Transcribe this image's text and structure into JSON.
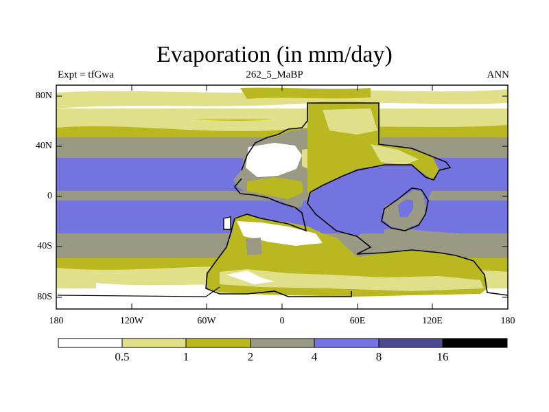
{
  "title": "Evaporation (in mm/day)",
  "subtitle_left": "Expt = tfGwa",
  "subtitle_center": "262_5_MaBP",
  "subtitle_right": "ANN",
  "y_ticks": [
    "80N",
    "40N",
    "0",
    "40S",
    "80S"
  ],
  "x_ticks": [
    "180",
    "120W",
    "60W",
    "0",
    "60E",
    "120E",
    "180"
  ],
  "colorbar": {
    "labels": [
      "0.5",
      "1",
      "2",
      "4",
      "8",
      "16"
    ],
    "colors": [
      "#ffffff",
      "#e0e08a",
      "#b9b820",
      "#9a9a84",
      "#7474e0",
      "#4a4a90",
      "#000000"
    ]
  },
  "colors": {
    "very_low": "#ffffff",
    "low": "#e0e08a",
    "mid": "#b9b820",
    "high": "#9a9a84",
    "very_high": "#7474e0",
    "coast": "#000000"
  }
}
